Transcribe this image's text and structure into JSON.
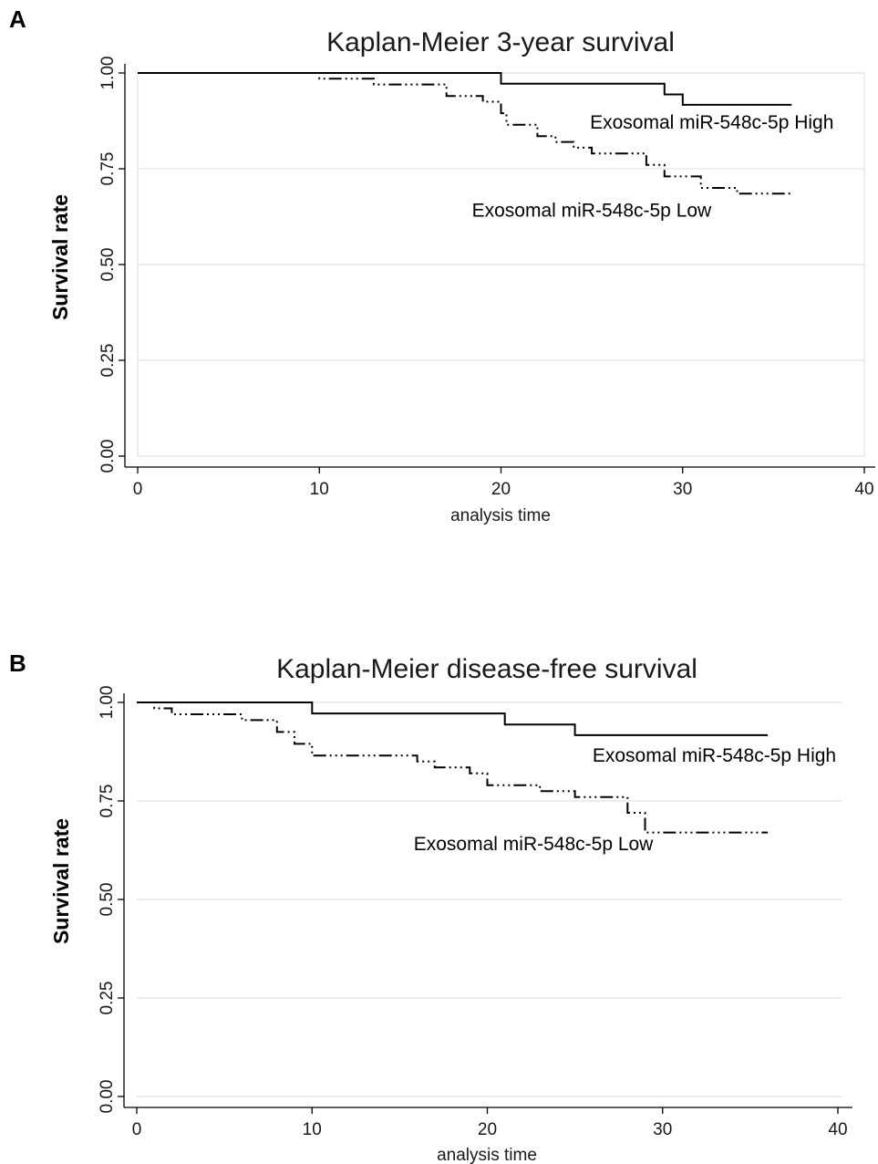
{
  "chart_data": [
    {
      "panel_label": "A",
      "type": "line",
      "step": true,
      "title": "Kaplan-Meier 3-year survival",
      "xlabel": "analysis time",
      "ylabel": "Survival rate",
      "xlim": [
        0,
        40
      ],
      "ylim": [
        0,
        1
      ],
      "xticks": [
        0,
        10,
        20,
        30,
        40
      ],
      "yticks": [
        0.0,
        0.25,
        0.5,
        0.75,
        1.0
      ],
      "ytick_labels": [
        "0.00",
        "0.25",
        "0.50",
        "0.75",
        "1.00"
      ],
      "grid": true,
      "frame": true,
      "series": [
        {
          "name": "Exosomal miR-548c-5p High",
          "style": "solid",
          "label_anchor": [
            24.9,
            0.855
          ],
          "points": [
            [
              0,
              1.0
            ],
            [
              20,
              1.0
            ],
            [
              20,
              0.972
            ],
            [
              29,
              0.972
            ],
            [
              29,
              0.944
            ],
            [
              30,
              0.944
            ],
            [
              30,
              0.917
            ],
            [
              36,
              0.917
            ]
          ]
        },
        {
          "name": "Exosomal miR-548c-5p Low",
          "style": "dashdot",
          "label_anchor": [
            18.4,
            0.625
          ],
          "points": [
            [
              0,
              1.0
            ],
            [
              10,
              1.0
            ],
            [
              10,
              0.985
            ],
            [
              13,
              0.985
            ],
            [
              13,
              0.97
            ],
            [
              17,
              0.97
            ],
            [
              17,
              0.94
            ],
            [
              19,
              0.94
            ],
            [
              19,
              0.925
            ],
            [
              20,
              0.925
            ],
            [
              20,
              0.895
            ],
            [
              20.3,
              0.895
            ],
            [
              20.3,
              0.865
            ],
            [
              22,
              0.865
            ],
            [
              22,
              0.835
            ],
            [
              23,
              0.835
            ],
            [
              23,
              0.82
            ],
            [
              24,
              0.82
            ],
            [
              24,
              0.805
            ],
            [
              25,
              0.805
            ],
            [
              25,
              0.79
            ],
            [
              28,
              0.79
            ],
            [
              28,
              0.76
            ],
            [
              29,
              0.76
            ],
            [
              29,
              0.73
            ],
            [
              31,
              0.73
            ],
            [
              31,
              0.7
            ],
            [
              33,
              0.7
            ],
            [
              33,
              0.685
            ],
            [
              36,
              0.685
            ]
          ]
        }
      ]
    },
    {
      "panel_label": "B",
      "type": "line",
      "step": true,
      "title": "Kaplan-Meier disease-free survival",
      "xlabel": "analysis time",
      "ylabel": "Survival rate",
      "xlim": [
        0,
        40
      ],
      "ylim": [
        0,
        1
      ],
      "xticks": [
        0,
        10,
        20,
        30,
        40
      ],
      "yticks": [
        0.0,
        0.25,
        0.5,
        0.75,
        1.0
      ],
      "ytick_labels": [
        "0.00",
        "0.25",
        "0.50",
        "0.75",
        "1.00"
      ],
      "grid": true,
      "frame": false,
      "series": [
        {
          "name": "Exosomal miR-548c-5p High",
          "style": "solid",
          "label_anchor": [
            26,
            0.85
          ],
          "points": [
            [
              0,
              1.0
            ],
            [
              10,
              1.0
            ],
            [
              10,
              0.972
            ],
            [
              21,
              0.972
            ],
            [
              21,
              0.944
            ],
            [
              25,
              0.944
            ],
            [
              25,
              0.917
            ],
            [
              36,
              0.917
            ]
          ]
        },
        {
          "name": "Exosomal miR-548c-5p Low",
          "style": "dashdot",
          "label_anchor": [
            15.8,
            0.625
          ],
          "points": [
            [
              0,
              1.0
            ],
            [
              1,
              1.0
            ],
            [
              1,
              0.985
            ],
            [
              2,
              0.985
            ],
            [
              2,
              0.97
            ],
            [
              6,
              0.97
            ],
            [
              6,
              0.955
            ],
            [
              8,
              0.955
            ],
            [
              8,
              0.925
            ],
            [
              9,
              0.925
            ],
            [
              9,
              0.895
            ],
            [
              10,
              0.895
            ],
            [
              10,
              0.865
            ],
            [
              16,
              0.865
            ],
            [
              16,
              0.85
            ],
            [
              17,
              0.85
            ],
            [
              17,
              0.835
            ],
            [
              19,
              0.835
            ],
            [
              19,
              0.82
            ],
            [
              20,
              0.82
            ],
            [
              20,
              0.79
            ],
            [
              23,
              0.79
            ],
            [
              23,
              0.775
            ],
            [
              25,
              0.775
            ],
            [
              25,
              0.76
            ],
            [
              28,
              0.76
            ],
            [
              28,
              0.72
            ],
            [
              29,
              0.72
            ],
            [
              29,
              0.67
            ],
            [
              36,
              0.67
            ]
          ]
        }
      ]
    }
  ]
}
